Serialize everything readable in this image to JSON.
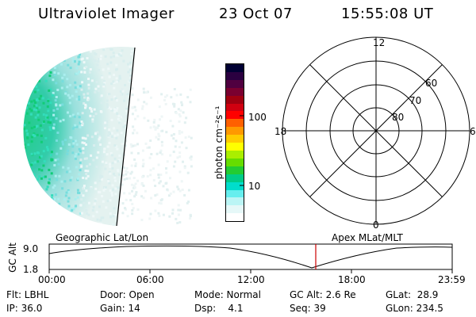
{
  "header": {
    "title": "Ultraviolet Imager",
    "date": "23 Oct 07",
    "time": "15:55:08 UT"
  },
  "colorbar": {
    "label": "photon cm⁻²s⁻¹",
    "tick_labels": [
      "100",
      "10"
    ],
    "colors": [
      "#000033",
      "#2a0040",
      "#500040",
      "#7a0030",
      "#a00010",
      "#d00010",
      "#ff0000",
      "#ff6000",
      "#ff9900",
      "#ffcc00",
      "#ffff00",
      "#aaee00",
      "#66dd00",
      "#22cc33",
      "#00cc88",
      "#00ddcc",
      "#66eeee",
      "#bbf5f5",
      "#e6f8f8",
      "#ffffff"
    ]
  },
  "polar": {
    "mlt_labels": {
      "top": "12",
      "left": "18",
      "right": "6",
      "bottom": "0"
    },
    "lat_labels": [
      "60",
      "70",
      "80"
    ]
  },
  "timeline": {
    "left_label": "Geographic Lat/Lon",
    "right_label": "Apex MLat/MLT",
    "axis_title": "GC Alt",
    "y_labels": [
      "9.0",
      "1.8"
    ],
    "x_labels": [
      "00:00",
      "06:00",
      "12:00",
      "18:00",
      "23:59"
    ]
  },
  "info": {
    "flt": "Flt: LBHL",
    "ip": "IP: 36.0",
    "door": "Door: Open",
    "gain": "Gain: 14",
    "mode": "Mode: Normal",
    "dsp": "Dsp:    4.1",
    "gcalt": "GC Alt: 2.6 Re",
    "seq": "Seq: 39",
    "glat": "GLat:  28.9",
    "glon": "GLon: 234.5"
  }
}
